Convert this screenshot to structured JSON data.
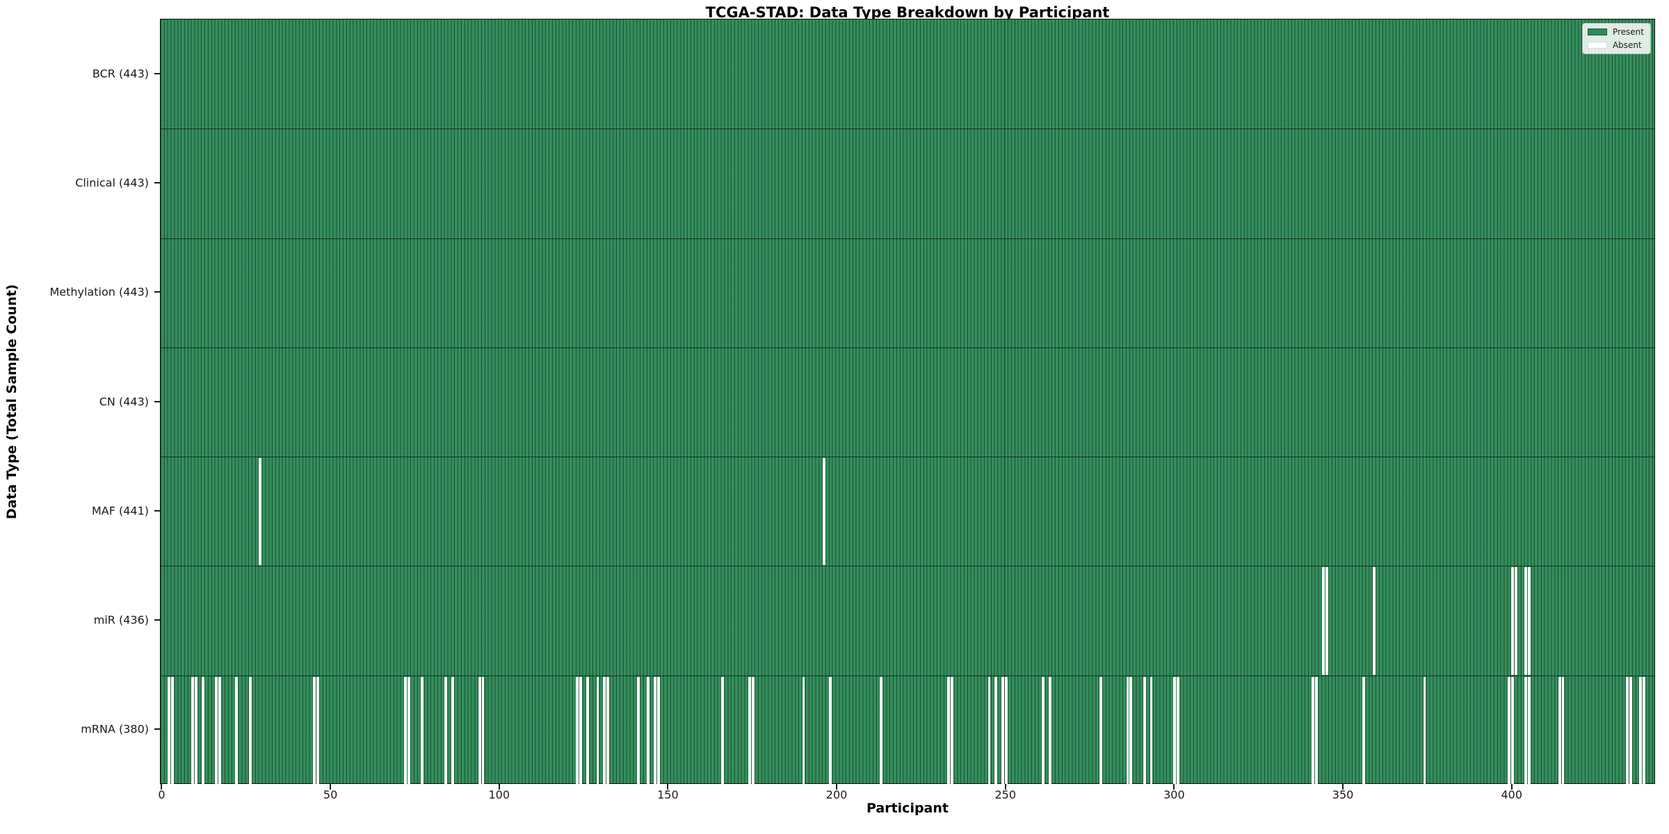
{
  "chart_data": {
    "type": "heatmap",
    "title": "TCGA-STAD: Data Type Breakdown by Participant",
    "xlabel": "Participant",
    "ylabel": "Data Type (Total Sample Count)",
    "x_ticks": [
      0,
      50,
      100,
      150,
      200,
      250,
      300,
      350,
      400
    ],
    "n_participants": 443,
    "grid": "cell-edges",
    "legend_position": "upper right",
    "legend": [
      {
        "label": "Present",
        "color": "#2e8b57"
      },
      {
        "label": "Absent",
        "color": "#ffffff"
      }
    ],
    "rows": [
      {
        "name": "BCR",
        "label": "BCR (443)",
        "total": 443,
        "absent": []
      },
      {
        "name": "Clinical",
        "label": "Clinical (443)",
        "total": 443,
        "absent": []
      },
      {
        "name": "Methylation",
        "label": "Methylation (443)",
        "total": 443,
        "absent": []
      },
      {
        "name": "CN",
        "label": "CN (443)",
        "total": 443,
        "absent": []
      },
      {
        "name": "MAF",
        "label": "MAF (441)",
        "total": 441,
        "absent": [
          29,
          196
        ]
      },
      {
        "name": "miR",
        "label": "miR (436)",
        "total": 436,
        "absent": [
          344,
          345,
          359,
          400,
          401,
          404,
          405
        ]
      },
      {
        "name": "mRNA",
        "label": "mRNA (380)",
        "total": 380,
        "absent": [
          2,
          3,
          9,
          10,
          12,
          16,
          17,
          22,
          26,
          45,
          46,
          72,
          73,
          77,
          84,
          86,
          94,
          95,
          123,
          124,
          126,
          129,
          131,
          132,
          141,
          144,
          146,
          147,
          166,
          174,
          175,
          190,
          198,
          213,
          233,
          234,
          245,
          247,
          249,
          250,
          261,
          263,
          278,
          286,
          287,
          291,
          293,
          300,
          301,
          341,
          342,
          356,
          374,
          399,
          400,
          404,
          405,
          414,
          415,
          434,
          435,
          438,
          439
        ]
      }
    ],
    "colors": {
      "present": "#2e8b57",
      "absent": "#ffffff",
      "cell_edge": "#0a2014",
      "axis": "#0d0d0d",
      "tick_text": "#1a1a1a"
    }
  }
}
